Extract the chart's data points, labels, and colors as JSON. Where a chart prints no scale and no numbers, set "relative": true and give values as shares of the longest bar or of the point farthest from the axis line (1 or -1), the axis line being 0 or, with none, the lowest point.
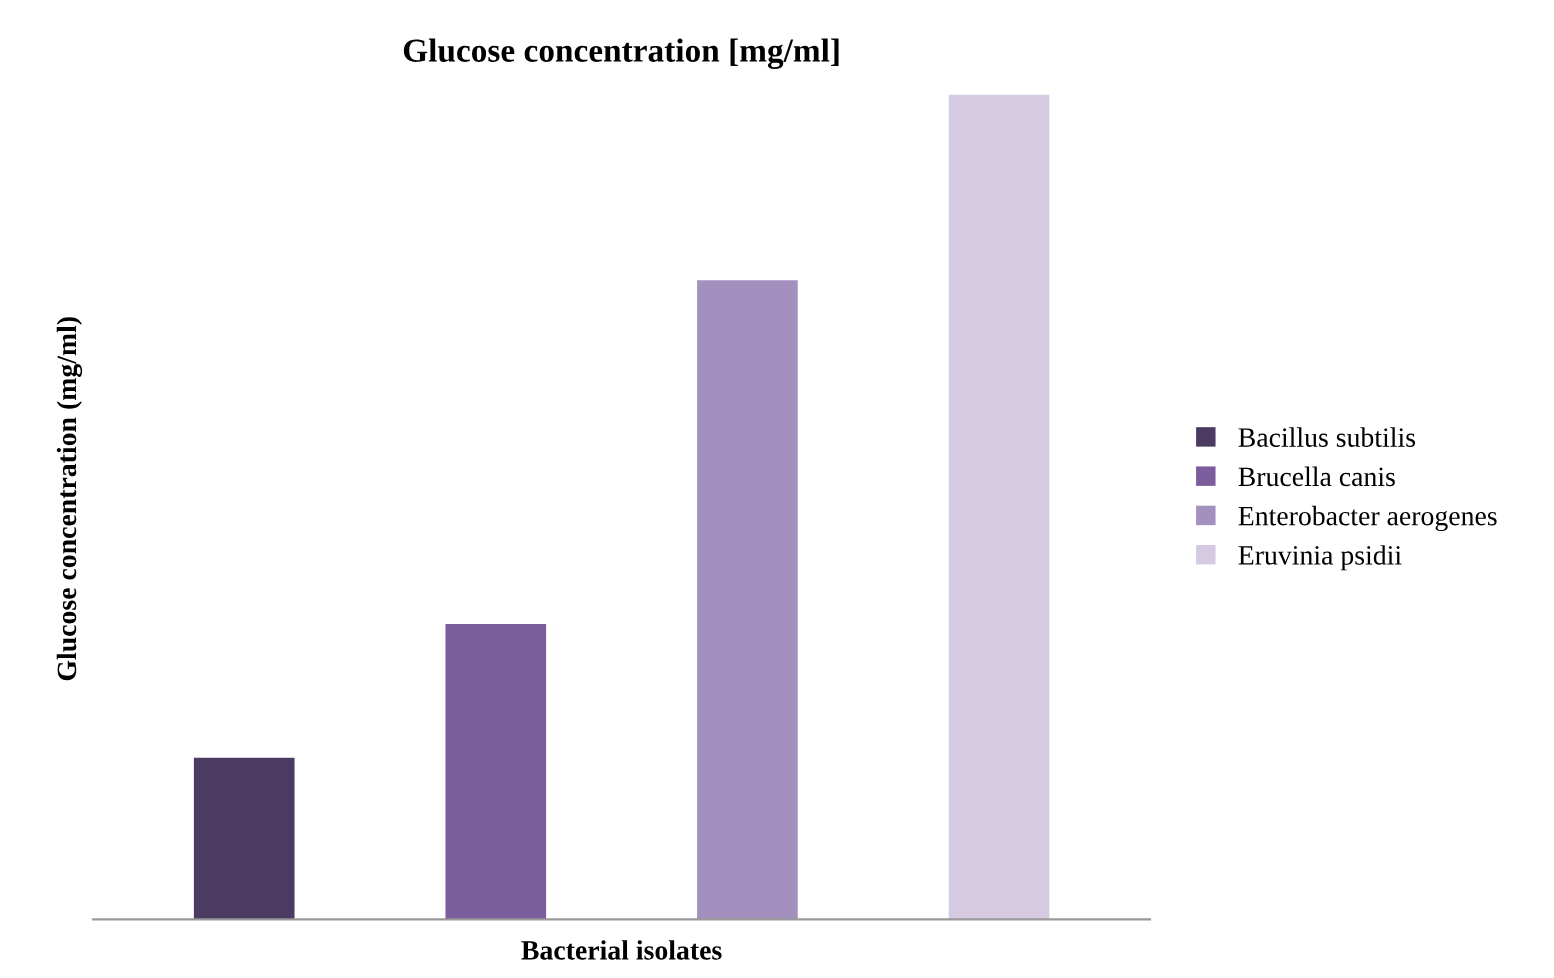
{
  "chart_data": {
    "type": "bar",
    "title": "Glucose concentration [mg/ml]",
    "xlabel": "Bacterial isolates",
    "ylabel": "Glucose concentration (mg/ml)",
    "categories": [
      null,
      null,
      null,
      null
    ],
    "relative": true,
    "legend": "right",
    "grid": false,
    "stacked": true,
    "series": [
      {
        "name": "Bacillus subtilis",
        "color": "#4b3b62",
        "values": [
          0.196,
          null,
          null,
          null
        ]
      },
      {
        "name": "Brucella canis",
        "color": "#7b5c9c",
        "values": [
          null,
          0.358,
          null,
          null
        ]
      },
      {
        "name": "Enterobacter aerogenes",
        "color": "#a390bf",
        "values": [
          null,
          null,
          0.775,
          null
        ]
      },
      {
        "name": "Eruvinia psidii",
        "color": "#d5cae2",
        "values": [
          null,
          null,
          null,
          1
        ]
      }
    ]
  }
}
